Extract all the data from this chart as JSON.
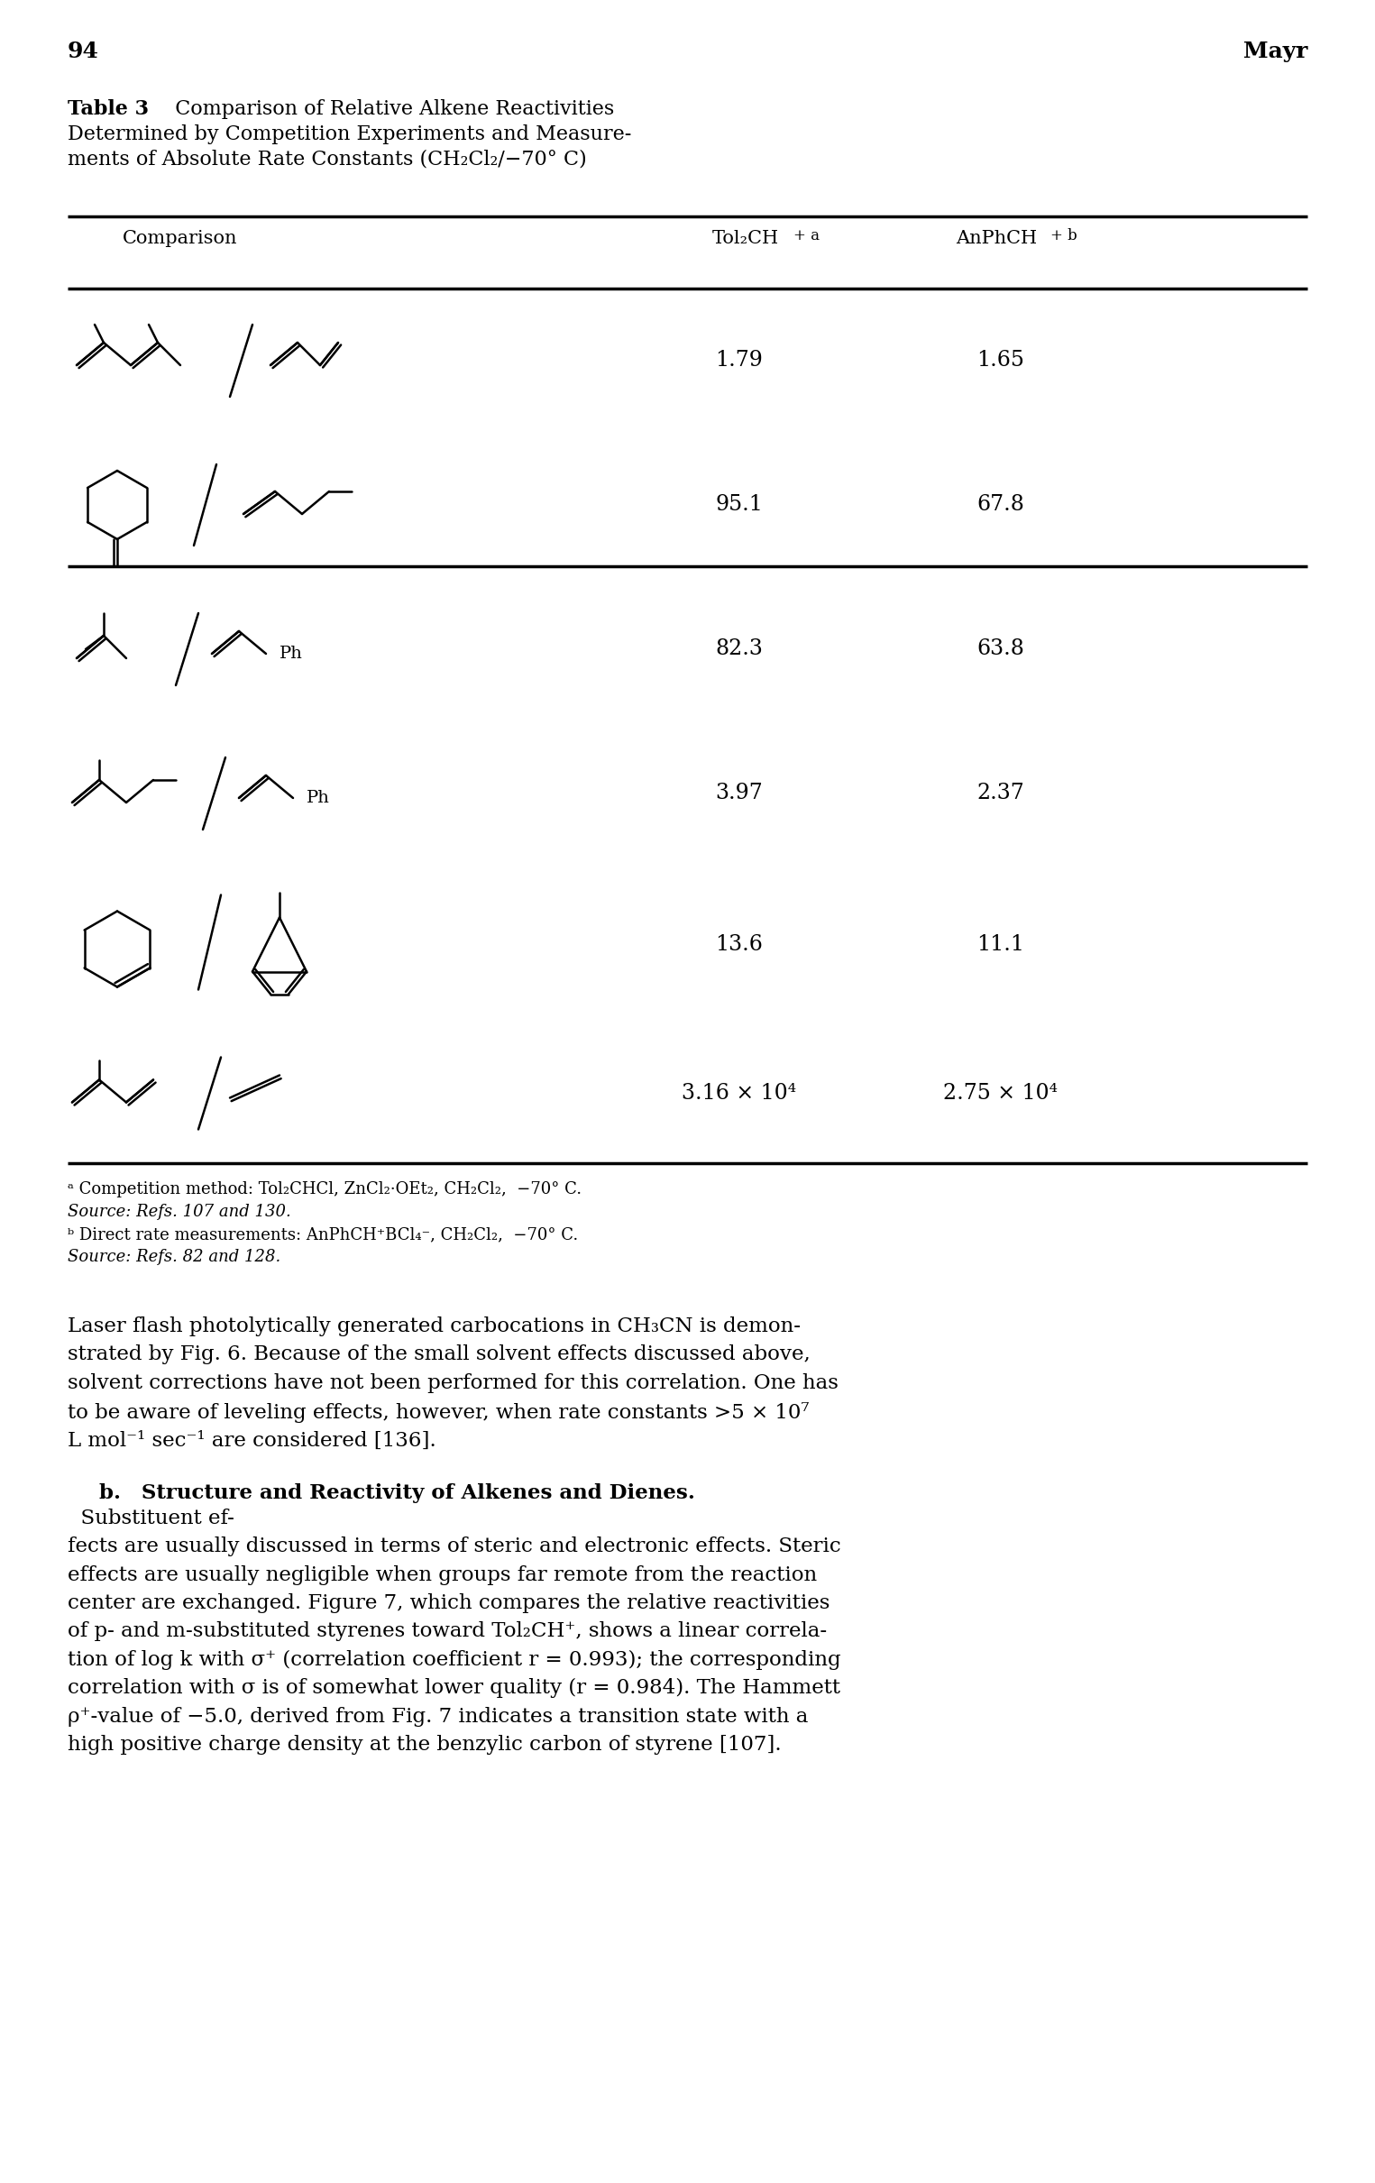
{
  "page_number": "94",
  "page_author": "Mayr",
  "table_title_bold": "Table 3",
  "table_title_rest": "  Comparison of Relative Alkene Reactivities\nDetermined by Competition Experiments and Measure-\nments of Absolute Rate Constants (CH₂Cl₂/−70° C)",
  "col_headers": [
    "Comparison",
    "Tol₂CH⁺ ᵃ",
    "AnPhCH⁺ ᵇ"
  ],
  "col1_values": [
    "1.79",
    "95.1",
    "82.3",
    "3.97",
    "13.6",
    "3.16 × 10⁴"
  ],
  "col2_values": [
    "1.65",
    "67.8",
    "63.8",
    "2.37",
    "11.1",
    "2.75 × 10⁴"
  ],
  "footnote_a_label": "ᵃ",
  "footnote_a": "Competition method: Tol₂CHCl, ZnCl₂·OEt₂, CH₂Cl₂,  −70° C.",
  "footnote_a_source": "Source: Refs. 107 and 130.",
  "footnote_b_label": "ᵇ",
  "footnote_b": "Direct rate measurements: AnPhCH⁺BCl₄⁻, CH₂Cl₂,  −70° C.",
  "footnote_b_source": "Source: Refs. 82 and 128.",
  "body_text": "Laser flash photolytically generated carbocations in CH₃CN is demon-\nstrated by Fig. 6. Because of the small solvent effects discussed above,\nsolvent corrections have not been performed for this correlation. One has\nto be aware of leveling effects, however, when rate constants >5 × 10⁷\nL mol⁻¹ sec⁻¹ are considered [136].",
  "body_bold": "b. Structure and Reactivity of Alkenes and Dienes.",
  "body_bold_continuation": "  Substituent ef-\nfects are usually discussed in terms of steric and electronic effects. Steric\neffects are usually negligible when groups far remote from the reaction\ncenter are exchanged. Figure 7, which compares the relative reactivities\nof p- and m-substituted styrenes toward Tol₂CH⁺, shows a linear correla-\ntion of log k with σ⁺ (correlation coefficient r = 0.993); the corresponding\ncorrelation with σ is of somewhat lower quality (r = 0.984). The Hammett\nρ⁺-value of −5.0, derived from Fig. 7 indicates a transition state with a\nhigh positive charge density at the benzylic carbon of styrene [107].",
  "background": "#ffffff",
  "text_color": "#000000"
}
